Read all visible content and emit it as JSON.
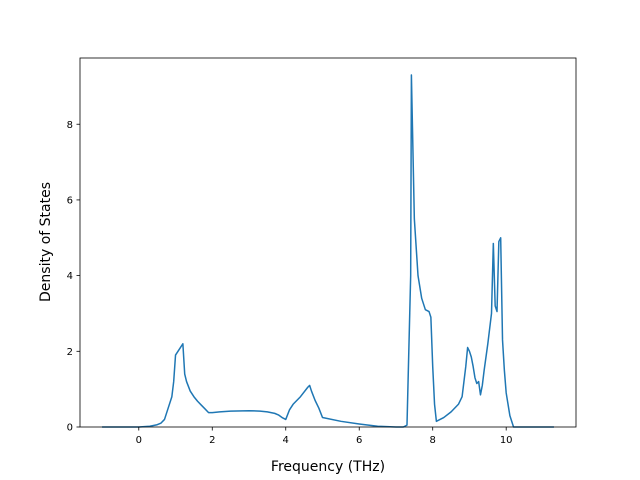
{
  "chart_data": {
    "type": "line",
    "title": "",
    "xlabel": "Frequency (THz)",
    "ylabel": "Density of States",
    "xlim": [
      -1.6,
      11.9
    ],
    "ylim": [
      0,
      9.75
    ],
    "xticks": [
      0,
      2,
      4,
      6,
      8,
      10
    ],
    "yticks": [
      0,
      2,
      4,
      6,
      8
    ],
    "grid": false,
    "legend": "none",
    "line_color": "#1f77b4",
    "series": [
      {
        "x": [
          -1.0,
          -0.5,
          0.0,
          0.3,
          0.5,
          0.6,
          0.7,
          0.8,
          0.9,
          0.95,
          1.0,
          1.1,
          1.2,
          1.25,
          1.3,
          1.4,
          1.5,
          1.6,
          1.7,
          1.8,
          1.9,
          2.0,
          2.2,
          2.5,
          3.0,
          3.3,
          3.5,
          3.7,
          3.8,
          3.9,
          4.0,
          4.1,
          4.2,
          4.4,
          4.6,
          4.65,
          4.7,
          4.8,
          4.9,
          5.0,
          5.5,
          6.0,
          6.5,
          7.0,
          7.2,
          7.3,
          7.4,
          7.42,
          7.5,
          7.6,
          7.7,
          7.8,
          7.9,
          7.95,
          8.0,
          8.05,
          8.1,
          8.3,
          8.5,
          8.7,
          8.8,
          8.9,
          8.95,
          9.0,
          9.05,
          9.1,
          9.15,
          9.2,
          9.25,
          9.3,
          9.35,
          9.4,
          9.5,
          9.6,
          9.65,
          9.7,
          9.75,
          9.8,
          9.85,
          9.9,
          9.95,
          10.0,
          10.1,
          10.2,
          10.3,
          11.0,
          11.3
        ],
        "y": [
          0,
          0,
          0,
          0.02,
          0.06,
          0.1,
          0.2,
          0.5,
          0.8,
          1.2,
          1.9,
          2.05,
          2.2,
          1.4,
          1.2,
          0.95,
          0.8,
          0.68,
          0.58,
          0.48,
          0.38,
          0.38,
          0.4,
          0.42,
          0.43,
          0.42,
          0.4,
          0.36,
          0.32,
          0.25,
          0.2,
          0.45,
          0.6,
          0.8,
          1.05,
          1.1,
          0.95,
          0.7,
          0.5,
          0.25,
          0.15,
          0.08,
          0.02,
          0,
          0,
          0.05,
          4.0,
          9.3,
          5.5,
          4.0,
          3.4,
          3.1,
          3.05,
          2.9,
          1.6,
          0.6,
          0.15,
          0.25,
          0.4,
          0.6,
          0.8,
          1.6,
          2.1,
          2.0,
          1.85,
          1.6,
          1.3,
          1.15,
          1.2,
          0.85,
          1.1,
          1.5,
          2.2,
          3.0,
          4.85,
          3.2,
          3.05,
          4.9,
          5.0,
          2.3,
          1.5,
          0.9,
          0.3,
          0,
          0,
          0,
          0
        ]
      }
    ]
  }
}
